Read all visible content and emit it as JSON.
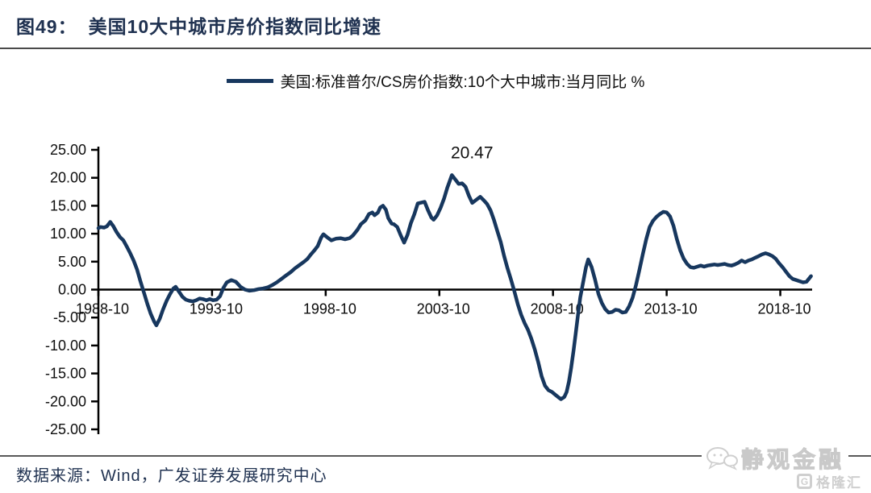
{
  "header": {
    "figure_label": "图49：",
    "title": "美国10大中城市房价指数同比增速"
  },
  "legend": {
    "label": "美国:标准普尔/CS房价指数:10个大中城市:当月同比 %"
  },
  "footer": {
    "source": "数据来源：Wind，广发证券发展研究中心"
  },
  "watermark": {
    "brand": "静观金融",
    "platform": "格隆汇",
    "logo_letter": "G"
  },
  "colors": {
    "line_navy": "#17375E",
    "title_navy": "#1F3150",
    "axis_black": "#000000",
    "watermark_gray": "#d9d9d9"
  },
  "chart_data": {
    "type": "line",
    "title": "美国10大中城市房价指数同比增速",
    "xlabel": "",
    "ylabel": "%",
    "grid": false,
    "legend_position": "top-center",
    "xlim": [
      1988.75,
      2020.15
    ],
    "ylim": [
      -25,
      25
    ],
    "y_ticks": [
      {
        "v": 25,
        "label": "25.00"
      },
      {
        "v": 20,
        "label": "20.00"
      },
      {
        "v": 15,
        "label": "15.00"
      },
      {
        "v": 10,
        "label": "10.00"
      },
      {
        "v": 5,
        "label": "5.00"
      },
      {
        "v": 0,
        "label": "0.00"
      },
      {
        "v": -5,
        "label": "-5.00"
      },
      {
        "v": -10,
        "label": "-10.00"
      },
      {
        "v": -15,
        "label": "-15.00"
      },
      {
        "v": -20,
        "label": "-20.00"
      },
      {
        "v": -25,
        "label": "-25.00"
      }
    ],
    "x_ticks": [
      {
        "v": 1988.75,
        "label": "1988-10"
      },
      {
        "v": 1993.75,
        "label": "1993-10"
      },
      {
        "v": 1998.75,
        "label": "1998-10"
      },
      {
        "v": 2003.75,
        "label": "2003-10"
      },
      {
        "v": 2008.75,
        "label": "2008-10"
      },
      {
        "v": 2013.75,
        "label": "2013-10"
      },
      {
        "v": 2018.75,
        "label": "2018-10"
      }
    ],
    "annotation": {
      "label": "20.47",
      "x": 2004.3,
      "y": 20.47
    },
    "series": [
      {
        "name": "美国:标准普尔/CS房价指数:10个大中城市:当月同比 %",
        "color": "#17375E",
        "points": [
          [
            1988.75,
            11.0
          ],
          [
            1988.85,
            11.2
          ],
          [
            1989.0,
            11.1
          ],
          [
            1989.12,
            11.3
          ],
          [
            1989.27,
            12.1
          ],
          [
            1989.4,
            11.4
          ],
          [
            1989.55,
            10.3
          ],
          [
            1989.7,
            9.4
          ],
          [
            1989.85,
            8.8
          ],
          [
            1990.0,
            7.7
          ],
          [
            1990.15,
            6.5
          ],
          [
            1990.3,
            5.2
          ],
          [
            1990.45,
            3.6
          ],
          [
            1990.6,
            1.5
          ],
          [
            1990.75,
            -0.5
          ],
          [
            1990.9,
            -2.5
          ],
          [
            1991.05,
            -4.3
          ],
          [
            1991.2,
            -5.7
          ],
          [
            1991.3,
            -6.4
          ],
          [
            1991.45,
            -5.2
          ],
          [
            1991.6,
            -3.5
          ],
          [
            1991.75,
            -2.0
          ],
          [
            1991.9,
            -0.8
          ],
          [
            1992.05,
            0.2
          ],
          [
            1992.15,
            0.5
          ],
          [
            1992.3,
            -0.4
          ],
          [
            1992.45,
            -1.3
          ],
          [
            1992.6,
            -1.8
          ],
          [
            1992.75,
            -2.0
          ],
          [
            1992.9,
            -2.1
          ],
          [
            1993.05,
            -1.9
          ],
          [
            1993.2,
            -1.6
          ],
          [
            1993.35,
            -1.7
          ],
          [
            1993.5,
            -1.9
          ],
          [
            1993.65,
            -1.7
          ],
          [
            1993.8,
            -1.9
          ],
          [
            1993.95,
            -1.8
          ],
          [
            1994.1,
            -1.2
          ],
          [
            1994.25,
            0.3
          ],
          [
            1994.4,
            1.3
          ],
          [
            1994.6,
            1.7
          ],
          [
            1994.8,
            1.4
          ],
          [
            1995.0,
            0.5
          ],
          [
            1995.2,
            0.0
          ],
          [
            1995.4,
            -0.2
          ],
          [
            1995.6,
            -0.1
          ],
          [
            1995.8,
            0.1
          ],
          [
            1996.0,
            0.2
          ],
          [
            1996.2,
            0.4
          ],
          [
            1996.4,
            0.8
          ],
          [
            1996.6,
            1.3
          ],
          [
            1996.8,
            1.9
          ],
          [
            1997.0,
            2.5
          ],
          [
            1997.2,
            3.1
          ],
          [
            1997.4,
            3.8
          ],
          [
            1997.6,
            4.4
          ],
          [
            1997.8,
            5.0
          ],
          [
            1997.95,
            5.5
          ],
          [
            1998.1,
            6.3
          ],
          [
            1998.25,
            7.0
          ],
          [
            1998.4,
            7.8
          ],
          [
            1998.55,
            9.3
          ],
          [
            1998.65,
            9.9
          ],
          [
            1998.8,
            9.4
          ],
          [
            1999.0,
            8.8
          ],
          [
            1999.2,
            9.1
          ],
          [
            1999.4,
            9.2
          ],
          [
            1999.6,
            9.0
          ],
          [
            1999.8,
            9.2
          ],
          [
            1999.95,
            9.7
          ],
          [
            2000.15,
            10.7
          ],
          [
            2000.3,
            11.7
          ],
          [
            2000.5,
            12.4
          ],
          [
            2000.65,
            13.5
          ],
          [
            2000.8,
            13.8
          ],
          [
            2000.9,
            13.3
          ],
          [
            2001.05,
            13.8
          ],
          [
            2001.15,
            14.7
          ],
          [
            2001.27,
            15.0
          ],
          [
            2001.4,
            14.3
          ],
          [
            2001.5,
            12.8
          ],
          [
            2001.65,
            11.8
          ],
          [
            2001.75,
            11.7
          ],
          [
            2001.9,
            11.2
          ],
          [
            2002.05,
            9.7
          ],
          [
            2002.2,
            8.4
          ],
          [
            2002.35,
            9.8
          ],
          [
            2002.5,
            11.9
          ],
          [
            2002.65,
            13.5
          ],
          [
            2002.8,
            15.4
          ],
          [
            2003.0,
            15.6
          ],
          [
            2003.1,
            15.7
          ],
          [
            2003.25,
            14.2
          ],
          [
            2003.4,
            12.9
          ],
          [
            2003.5,
            12.5
          ],
          [
            2003.65,
            13.3
          ],
          [
            2003.8,
            14.6
          ],
          [
            2003.95,
            16.2
          ],
          [
            2004.1,
            18.2
          ],
          [
            2004.3,
            20.47
          ],
          [
            2004.45,
            19.7
          ],
          [
            2004.6,
            18.9
          ],
          [
            2004.75,
            19.0
          ],
          [
            2004.9,
            18.4
          ],
          [
            2005.05,
            16.8
          ],
          [
            2005.2,
            15.5
          ],
          [
            2005.35,
            16.0
          ],
          [
            2005.55,
            16.6
          ],
          [
            2005.7,
            16.0
          ],
          [
            2005.85,
            15.3
          ],
          [
            2006.0,
            14.2
          ],
          [
            2006.15,
            12.5
          ],
          [
            2006.3,
            10.5
          ],
          [
            2006.45,
            8.5
          ],
          [
            2006.6,
            6.0
          ],
          [
            2006.75,
            3.8
          ],
          [
            2006.9,
            1.8
          ],
          [
            2007.05,
            -0.3
          ],
          [
            2007.2,
            -2.6
          ],
          [
            2007.35,
            -4.5
          ],
          [
            2007.5,
            -6.0
          ],
          [
            2007.65,
            -7.2
          ],
          [
            2007.8,
            -8.8
          ],
          [
            2007.95,
            -10.7
          ],
          [
            2008.1,
            -13.0
          ],
          [
            2008.25,
            -15.5
          ],
          [
            2008.4,
            -17.2
          ],
          [
            2008.55,
            -18.0
          ],
          [
            2008.7,
            -18.3
          ],
          [
            2008.85,
            -18.8
          ],
          [
            2009.0,
            -19.3
          ],
          [
            2009.1,
            -19.6
          ],
          [
            2009.25,
            -19.2
          ],
          [
            2009.35,
            -18.3
          ],
          [
            2009.45,
            -16.5
          ],
          [
            2009.55,
            -14.0
          ],
          [
            2009.65,
            -11.0
          ],
          [
            2009.75,
            -7.8
          ],
          [
            2009.85,
            -4.5
          ],
          [
            2009.95,
            -1.4
          ],
          [
            2010.1,
            1.8
          ],
          [
            2010.2,
            4.0
          ],
          [
            2010.3,
            5.4
          ],
          [
            2010.45,
            4.0
          ],
          [
            2010.6,
            1.8
          ],
          [
            2010.75,
            -0.8
          ],
          [
            2010.9,
            -2.4
          ],
          [
            2011.05,
            -3.5
          ],
          [
            2011.2,
            -4.1
          ],
          [
            2011.35,
            -4.0
          ],
          [
            2011.5,
            -3.6
          ],
          [
            2011.65,
            -3.7
          ],
          [
            2011.8,
            -4.1
          ],
          [
            2011.95,
            -4.0
          ],
          [
            2012.1,
            -3.0
          ],
          [
            2012.25,
            -1.5
          ],
          [
            2012.4,
            0.8
          ],
          [
            2012.55,
            3.5
          ],
          [
            2012.7,
            6.3
          ],
          [
            2012.85,
            9.0
          ],
          [
            2013.0,
            11.2
          ],
          [
            2013.15,
            12.3
          ],
          [
            2013.3,
            13.0
          ],
          [
            2013.45,
            13.5
          ],
          [
            2013.6,
            13.9
          ],
          [
            2013.75,
            13.8
          ],
          [
            2013.9,
            13.1
          ],
          [
            2014.05,
            11.4
          ],
          [
            2014.2,
            9.0
          ],
          [
            2014.35,
            7.0
          ],
          [
            2014.5,
            5.5
          ],
          [
            2014.65,
            4.6
          ],
          [
            2014.8,
            4.0
          ],
          [
            2014.95,
            3.9
          ],
          [
            2015.1,
            4.1
          ],
          [
            2015.25,
            4.3
          ],
          [
            2015.4,
            4.1
          ],
          [
            2015.55,
            4.3
          ],
          [
            2015.7,
            4.4
          ],
          [
            2015.85,
            4.5
          ],
          [
            2016.0,
            4.4
          ],
          [
            2016.15,
            4.5
          ],
          [
            2016.3,
            4.6
          ],
          [
            2016.45,
            4.4
          ],
          [
            2016.6,
            4.3
          ],
          [
            2016.75,
            4.5
          ],
          [
            2016.9,
            4.8
          ],
          [
            2017.05,
            5.2
          ],
          [
            2017.2,
            4.9
          ],
          [
            2017.35,
            5.2
          ],
          [
            2017.5,
            5.4
          ],
          [
            2017.65,
            5.7
          ],
          [
            2017.8,
            6.0
          ],
          [
            2017.95,
            6.3
          ],
          [
            2018.1,
            6.5
          ],
          [
            2018.25,
            6.3
          ],
          [
            2018.4,
            6.0
          ],
          [
            2018.55,
            5.5
          ],
          [
            2018.7,
            4.7
          ],
          [
            2018.85,
            4.0
          ],
          [
            2019.0,
            3.2
          ],
          [
            2019.15,
            2.4
          ],
          [
            2019.3,
            1.9
          ],
          [
            2019.45,
            1.7
          ],
          [
            2019.6,
            1.5
          ],
          [
            2019.75,
            1.3
          ],
          [
            2019.9,
            1.4
          ],
          [
            2020.0,
            1.9
          ],
          [
            2020.1,
            2.4
          ]
        ]
      }
    ]
  }
}
